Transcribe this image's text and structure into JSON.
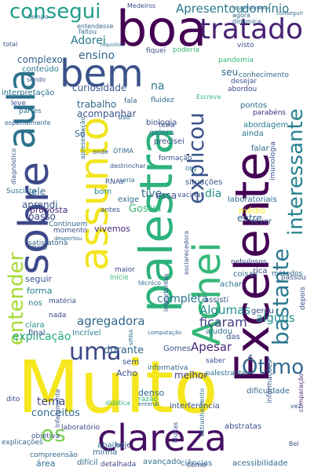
{
  "word_cloud": {
    "words": [
      {
        "text": "Muito",
        "color": "#f5e61e"
      },
      {
        "text": "Excelente",
        "color": "#440154"
      },
      {
        "text": "palestra",
        "color": "#2db27d"
      },
      {
        "text": "sobre",
        "color": "#3e4989"
      },
      {
        "text": "Achei",
        "color": "#35b779"
      },
      {
        "text": "aula",
        "color": "#2c728e"
      },
      {
        "text": "boa",
        "color": "#440154"
      },
      {
        "text": "assunto",
        "color": "#f1e51d"
      },
      {
        "text": "bem",
        "color": "#3b528b"
      },
      {
        "text": "clareza",
        "color": "#471063"
      },
      {
        "text": "tratado",
        "color": "#482173"
      },
      {
        "text": "consegui",
        "color": "#1f9e89"
      },
      {
        "text": "interessante",
        "color": "#26828e"
      },
      {
        "text": "bastante",
        "color": "#2a788e"
      },
      {
        "text": "explicou",
        "color": "#3b528b"
      },
      {
        "text": "entender",
        "color": "#a5db36"
      },
      {
        "text": "uma",
        "color": "#3e4989"
      },
      {
        "text": "Ótimo",
        "color": "#31688e"
      },
      {
        "text": "os",
        "color": "#7ad151"
      },
      {
        "text": "Apresentou",
        "color": "#2a788e"
      },
      {
        "text": "domínio",
        "color": "#2c728e"
      },
      {
        "text": "ensino",
        "color": "#31688e"
      },
      {
        "text": "Adorei",
        "color": "#2a788e"
      },
      {
        "text": "curiosidade",
        "color": "#39568c"
      },
      {
        "text": "trabalho",
        "color": "#31688e"
      },
      {
        "text": "acompanhar",
        "color": "#3b528b"
      },
      {
        "text": "complexo",
        "color": "#35608d"
      },
      {
        "text": "conteúdo",
        "color": "#2a788e"
      },
      {
        "text": "interpretação",
        "color": "#2c728e"
      },
      {
        "text": "agregadora",
        "color": "#31688e"
      },
      {
        "text": "ficaram",
        "color": "#433e85"
      },
      {
        "text": "Algumas",
        "color": "#21918c"
      },
      {
        "text": "completa",
        "color": "#2a788e"
      },
      {
        "text": "explicação",
        "color": "#22a884"
      },
      {
        "text": "durante",
        "color": "#31688e"
      },
      {
        "text": "Apesar",
        "color": "#482878"
      },
      {
        "text": "alguns",
        "color": "#21918c"
      },
      {
        "text": "melhor",
        "color": "#443983"
      },
      {
        "text": "tema",
        "color": "#3e4989"
      },
      {
        "text": "conceitos",
        "color": "#31688e"
      },
      {
        "text": "Gostei",
        "color": "#35b779"
      },
      {
        "text": "vivemos",
        "color": "#482878"
      },
      {
        "text": "dia",
        "color": "#21918c"
      },
      {
        "text": "tive",
        "color": "#31688e"
      },
      {
        "text": "essa",
        "color": "#3b528b"
      },
      {
        "text": "ele",
        "color": "#31688e"
      },
      {
        "text": "aprendi",
        "color": "#39568c"
      },
      {
        "text": "passo",
        "color": "#3e4989"
      },
      {
        "text": "proposta",
        "color": "#482878"
      },
      {
        "text": "entre",
        "color": "#31688e"
      },
      {
        "text": "médio",
        "color": "#fde725"
      },
      {
        "text": "rever",
        "color": "#3b528b"
      },
      {
        "text": "seguir",
        "color": "#3b528b"
      },
      {
        "text": "forma",
        "color": "#26828e"
      },
      {
        "text": "na",
        "color": "#2a788e"
      },
      {
        "text": "seu",
        "color": "#31688e"
      },
      {
        "text": "nos",
        "color": "#2a788e"
      },
      {
        "text": "Só",
        "color": "#31688e"
      },
      {
        "text": "nada",
        "color": "#3e4989"
      },
      {
        "text": "clara",
        "color": "#21918c"
      },
      {
        "text": "final",
        "color": "#3b528b"
      },
      {
        "text": "Incrível",
        "color": "#26828e"
      },
      {
        "text": "hoje",
        "color": "#3e4989"
      },
      {
        "text": "abaixo",
        "color": "#31688e"
      },
      {
        "text": "minha",
        "color": "#31688e"
      },
      {
        "text": "área",
        "color": "#2c728e"
      },
      {
        "text": "difícil",
        "color": "#31688e"
      },
      {
        "text": "detalhada",
        "color": "#3e4989"
      },
      {
        "text": "avançado",
        "color": "#2c728e"
      },
      {
        "text": "ciências",
        "color": "#31688e"
      },
      {
        "text": "acessibilidade",
        "color": "#31688e"
      },
      {
        "text": "dificuldade",
        "color": "#31688e"
      },
      {
        "text": "abstratas",
        "color": "#3b528b"
      },
      {
        "text": "comparação",
        "color": "#482878"
      },
      {
        "text": "depois",
        "color": "#3b528b"
      },
      {
        "text": "informações",
        "color": "#3b528b"
      },
      {
        "text": "explicações",
        "color": "#31688e"
      },
      {
        "text": "dito",
        "color": "#3e4989"
      },
      {
        "text": "Acho",
        "color": "#3b528b"
      },
      {
        "text": "sem",
        "color": "#3b528b"
      },
      {
        "text": "denso",
        "color": "#31688e"
      },
      {
        "text": "Gomes",
        "color": "#3b528b"
      },
      {
        "text": "informativa",
        "color": "#31688e"
      },
      {
        "text": "das",
        "color": "#3b528b"
      },
      {
        "text": "ajudou",
        "color": "#2c728e"
      },
      {
        "text": "gerou",
        "color": "#3b528b"
      },
      {
        "text": "assisti",
        "color": "#3b528b"
      },
      {
        "text": "achar",
        "color": "#2c728e"
      },
      {
        "text": "coisas",
        "color": "#31688e"
      },
      {
        "text": "rica",
        "color": "#3e4989"
      },
      {
        "text": "nebulosos",
        "color": "#3e4989"
      },
      {
        "text": "métodos",
        "color": "#31688e"
      },
      {
        "text": "passou",
        "color": "#3b528b"
      },
      {
        "text": "pontos",
        "color": "#31688e"
      },
      {
        "text": "ainda",
        "color": "#2c728e"
      },
      {
        "text": "falar",
        "color": "#31688e"
      },
      {
        "text": "abordagem",
        "color": "#26828e"
      },
      {
        "text": "conhecimento",
        "color": "#31688e"
      },
      {
        "text": "pandemia",
        "color": "#35b779"
      },
      {
        "text": "desejar",
        "color": "#3b528b"
      },
      {
        "text": "abordou",
        "color": "#3e4989"
      },
      {
        "text": "parabéns",
        "color": "#482878"
      },
      {
        "text": "biologia",
        "color": "#3b528b"
      },
      {
        "text": "galera",
        "color": "#2c728e"
      },
      {
        "text": "formação",
        "color": "#3b528b"
      },
      {
        "text": "precisei",
        "color": "#3b528b"
      },
      {
        "text": "situações",
        "color": "#3b528b"
      },
      {
        "text": "laboratoriais",
        "color": "#31688e"
      },
      {
        "text": "imunologia",
        "color": "#3b528b"
      },
      {
        "text": "vacinas",
        "color": "#3b528b"
      },
      {
        "text": "exige",
        "color": "#31688e"
      },
      {
        "text": "RNAs",
        "color": "#3b528b"
      },
      {
        "text": "antes",
        "color": "#3b528b"
      },
      {
        "text": "momento",
        "color": "#3b528b"
      },
      {
        "text": "Continuem",
        "color": "#31688e"
      },
      {
        "text": "bom",
        "color": "#26828e"
      },
      {
        "text": "Suscinta",
        "color": "#2c728e"
      },
      {
        "text": "satisfatória",
        "color": "#31688e"
      },
      {
        "text": "meio",
        "color": "#3b528b"
      },
      {
        "text": "maior",
        "color": "#3e4989"
      },
      {
        "text": "Início",
        "color": "#35b779"
      },
      {
        "text": "matéria",
        "color": "#3b528b"
      },
      {
        "text": "total",
        "color": "#3b528b"
      },
      {
        "text": "tempo",
        "color": "#2c728e"
      },
      {
        "text": "entendesse",
        "color": "#31688e"
      },
      {
        "text": "faltou",
        "color": "#31688e"
      },
      {
        "text": "fiquei",
        "color": "#3b528b"
      },
      {
        "text": "poderia",
        "color": "#35b779"
      },
      {
        "text": "visto",
        "color": "#3b528b"
      },
      {
        "text": "agora",
        "color": "#31688e"
      },
      {
        "text": "dinâmica",
        "color": "#31688e"
      },
      {
        "text": "conseguir",
        "color": "#31688e"
      },
      {
        "text": "Medeiros",
        "color": "#3b528b"
      },
      {
        "text": "impressionante",
        "color": "#2c728e"
      },
      {
        "text": "requisitos",
        "color": "#2c728e"
      },
      {
        "text": "sendo",
        "color": "#3b528b"
      },
      {
        "text": "fluidez",
        "color": "#31688e"
      },
      {
        "text": "fala",
        "color": "#31688e"
      },
      {
        "text": "Escreva",
        "color": "#35b779"
      },
      {
        "text": "uso",
        "color": "#31688e"
      },
      {
        "text": "teria",
        "color": "#3b528b"
      },
      {
        "text": "leve",
        "color": "#3b528b"
      },
      {
        "text": "partes",
        "color": "#2c728e"
      },
      {
        "text": "especialmente",
        "color": "#31688e"
      },
      {
        "text": "diagnóstico",
        "color": "#3b528b"
      },
      {
        "text": "apresentação",
        "color": "#31688e"
      },
      {
        "text": "onde",
        "color": "#3b528b"
      },
      {
        "text": "ÓTIMA",
        "color": "#31688e"
      },
      {
        "text": "destrinchar",
        "color": "#3b528b"
      },
      {
        "text": "seria",
        "color": "#31688e"
      },
      {
        "text": "despertou",
        "color": "#31688e"
      },
      {
        "text": "Obg",
        "color": "#2c728e"
      },
      {
        "text": "esclarecedora",
        "color": "#3b528b"
      },
      {
        "text": "técnico",
        "color": "#31688e"
      },
      {
        "text": "importantes",
        "color": "#3b528b"
      },
      {
        "text": "computação",
        "color": "#31688e"
      },
      {
        "text": "siRNA",
        "color": "#2c728e"
      },
      {
        "text": "saber",
        "color": "#3b528b"
      },
      {
        "text": "palestrante",
        "color": "#2c728e"
      },
      {
        "text": "razão",
        "color": "#35b779"
      },
      {
        "text": "entendi",
        "color": "#31688e"
      },
      {
        "text": "interferência",
        "color": "#3b528b"
      },
      {
        "text": "laboratório",
        "color": "#3e4989"
      },
      {
        "text": "objetiva",
        "color": "#3b528b"
      },
      {
        "text": "compreensão",
        "color": "#31688e"
      },
      {
        "text": "vez",
        "color": "#3b528b"
      },
      {
        "text": "Bel",
        "color": "#3b528b"
      },
      {
        "text": "como",
        "color": "#3b528b"
      },
      {
        "text": "Infelizmente",
        "color": "#3b528b"
      },
      {
        "text": "Muitas",
        "color": "#3b528b"
      },
      {
        "text": "estranhamento",
        "color": "#2c728e"
      },
      {
        "text": "didática",
        "color": "#35b779"
      }
    ]
  }
}
